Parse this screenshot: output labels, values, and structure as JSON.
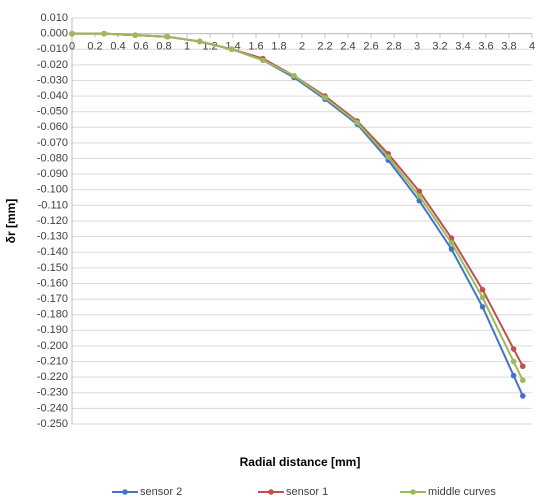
{
  "chart_data": {
    "type": "line",
    "x_label": "Radial distance [mm]",
    "y_label": "δr [mm]",
    "x": [
      0,
      0.28,
      0.55,
      0.83,
      1.11,
      1.39,
      1.66,
      1.93,
      2.2,
      2.48,
      2.75,
      3.02,
      3.3,
      3.57,
      3.84,
      3.92
    ],
    "series": [
      {
        "name": "sensor 2",
        "color": "#4472c4",
        "values": [
          0,
          0,
          -0.001,
          -0.002,
          -0.005,
          -0.01,
          -0.017,
          -0.028,
          -0.042,
          -0.058,
          -0.081,
          -0.107,
          -0.138,
          -0.175,
          -0.219,
          -0.232
        ]
      },
      {
        "name": "sensor 1",
        "color": "#c0504d",
        "values": [
          0,
          0,
          -0.001,
          -0.002,
          -0.005,
          -0.01,
          -0.016,
          -0.027,
          -0.04,
          -0.056,
          -0.077,
          -0.101,
          -0.131,
          -0.164,
          -0.202,
          -0.213
        ]
      },
      {
        "name": "middle curves",
        "color": "#9bbb59",
        "values": [
          0,
          0,
          -0.001,
          -0.002,
          -0.005,
          -0.01,
          -0.017,
          -0.027,
          -0.041,
          -0.057,
          -0.079,
          -0.104,
          -0.134,
          -0.169,
          -0.21,
          -0.222
        ]
      }
    ],
    "xlim": [
      0,
      4
    ],
    "xticks": [
      0,
      0.2,
      0.4,
      0.6,
      0.8,
      1,
      1.2,
      1.4,
      1.6,
      1.8,
      2,
      2.2,
      2.4,
      2.6,
      2.8,
      3,
      3.2,
      3.4,
      3.6,
      3.8,
      4
    ],
    "ylim": [
      -0.25,
      0.01
    ],
    "yticks": [
      {
        "value": 0.01,
        "label": "0.010"
      },
      {
        "value": 0,
        "label": "0.000"
      },
      {
        "value": -0.01,
        "label": "-0.010"
      },
      {
        "value": -0.02,
        "label": "-0.020"
      },
      {
        "value": -0.03,
        "label": "-0.030"
      },
      {
        "value": -0.04,
        "label": "-0.040"
      },
      {
        "value": -0.05,
        "label": "-0.050"
      },
      {
        "value": -0.06,
        "label": "-0.060"
      },
      {
        "value": -0.07,
        "label": "-0.070"
      },
      {
        "value": -0.08,
        "label": "-0.080"
      },
      {
        "value": -0.09,
        "label": "-0.090"
      },
      {
        "value": -0.1,
        "label": "-0.100"
      },
      {
        "value": -0.11,
        "label": "-0.110"
      },
      {
        "value": -0.12,
        "label": "-0.120"
      },
      {
        "value": -0.13,
        "label": "-0.130"
      },
      {
        "value": -0.14,
        "label": "-0.140"
      },
      {
        "value": -0.15,
        "label": "-0.150"
      },
      {
        "value": -0.16,
        "label": "-0.160"
      },
      {
        "value": -0.17,
        "label": "-0.170"
      },
      {
        "value": -0.18,
        "label": "-0.180"
      },
      {
        "value": -0.19,
        "label": "-0.190"
      },
      {
        "value": -0.2,
        "label": "-0.200"
      },
      {
        "value": -0.21,
        "label": "-0.210"
      },
      {
        "value": -0.22,
        "label": "-0.220"
      },
      {
        "value": -0.23,
        "label": "-0.230"
      },
      {
        "value": -0.24,
        "label": "-0.240"
      },
      {
        "value": -0.25,
        "label": "-0.250"
      }
    ],
    "grid": true,
    "legend": "bottom"
  }
}
